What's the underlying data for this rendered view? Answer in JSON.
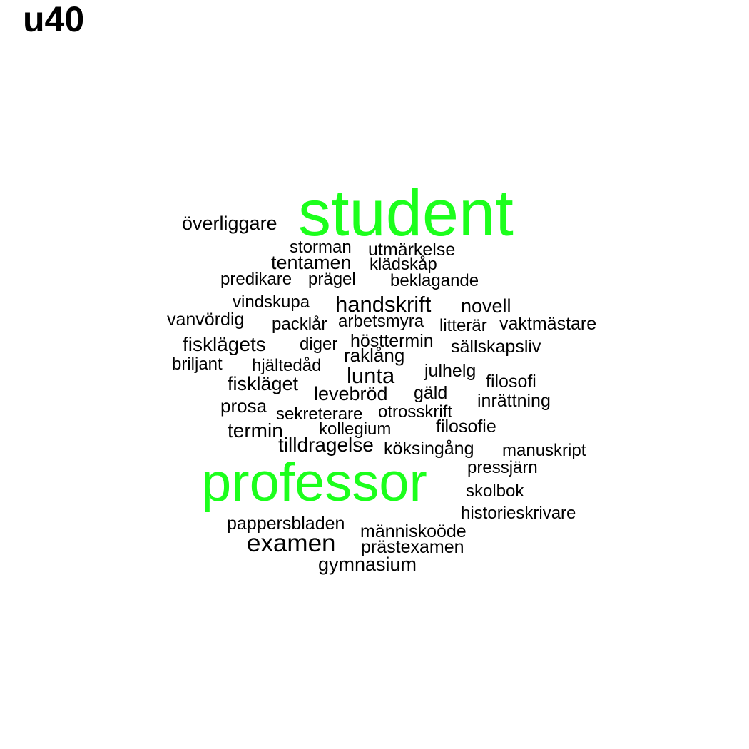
{
  "title": "u40",
  "colors": {
    "highlight": "#1cff1c",
    "normal": "#000000"
  },
  "words": [
    {
      "text": "student",
      "highlight": true
    },
    {
      "text": "professor",
      "highlight": true
    },
    {
      "text": "överliggare"
    },
    {
      "text": "storman"
    },
    {
      "text": "utmärkelse"
    },
    {
      "text": "tentamen"
    },
    {
      "text": "klädskåp"
    },
    {
      "text": "predikare"
    },
    {
      "text": "prägel"
    },
    {
      "text": "beklagande"
    },
    {
      "text": "vindskupa"
    },
    {
      "text": "handskrift"
    },
    {
      "text": "novell"
    },
    {
      "text": "vanvördig"
    },
    {
      "text": "packlår"
    },
    {
      "text": "arbetsmyra"
    },
    {
      "text": "litterär"
    },
    {
      "text": "vaktmästare"
    },
    {
      "text": "fiskläget"
    },
    {
      "text": "fisklägets"
    },
    {
      "text": "diger"
    },
    {
      "text": "hösttermin"
    },
    {
      "text": "sällskapsliv"
    },
    {
      "text": "raklång"
    },
    {
      "text": "briljant"
    },
    {
      "text": "hjältedåd"
    },
    {
      "text": "lunta"
    },
    {
      "text": "julhelg"
    },
    {
      "text": "filosofi"
    },
    {
      "text": "levebröd"
    },
    {
      "text": "gäld"
    },
    {
      "text": "inrättning"
    },
    {
      "text": "prosa"
    },
    {
      "text": "sekreterare"
    },
    {
      "text": "otrosskrift"
    },
    {
      "text": "termin"
    },
    {
      "text": "kollegium"
    },
    {
      "text": "filosofie"
    },
    {
      "text": "tilldragelse"
    },
    {
      "text": "köksingång"
    },
    {
      "text": "manuskript"
    },
    {
      "text": "pressjärn"
    },
    {
      "text": "skolbok"
    },
    {
      "text": "historieskrivare"
    },
    {
      "text": "pappersbladen"
    },
    {
      "text": "människoöde"
    },
    {
      "text": "examen"
    },
    {
      "text": "prästexamen"
    },
    {
      "text": "gymnasium"
    }
  ]
}
